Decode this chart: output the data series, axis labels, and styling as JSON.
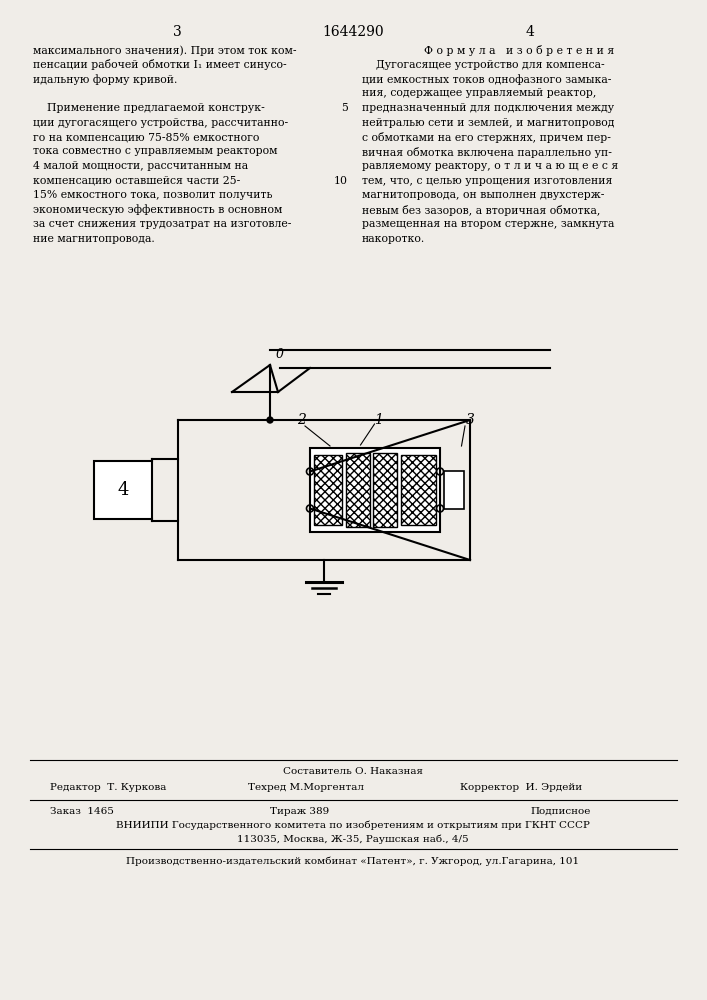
{
  "bg_color": "#f0ede8",
  "page_num_left": "3",
  "page_num_center": "1644290",
  "page_num_right": "4",
  "left_col_lines": [
    "максимального значения). При этом ток ком-",
    "пенсации рабочей обмотки I₁ имеет синусо-",
    "идальную форму кривой.",
    "",
    "    Применение предлагаемой конструк-",
    "ции дугогасящего устройства, рассчитанно-",
    "го на компенсацию 75-85% емкостного",
    "тока совместно с управляемым реактором",
    "4 малой мощности, рассчитанным на",
    "компенсацию оставшейся части 25-",
    "15% емкостного тока, позволит получить",
    "экономическую эффективность в основном",
    "за счет снижения трудозатрат на изготовле-",
    "ние магнитопровода."
  ],
  "line_num_5": "5",
  "line_num_10": "10",
  "right_col_header": "Ф о р м у л а   и з о б р е т е н и я",
  "right_col_lines": [
    "    Дугогасящее устройство для компенса-",
    "ции емкостных токов однофазного замыка-",
    "ния, содержащее управляемый реактор,",
    "предназначенный для подключения между",
    "нейтралью сети и землей, и магнитопровод",
    "с обмотками на его стержнях, причем пер-",
    "вичная обмотка включена параллельно уп-",
    "равляемому реактору, о т л и ч а ю щ е е с я",
    "тем, что, с целью упрощения изготовления",
    "магнитопровода, он выполнен двухстерж-",
    "невым без зазоров, а вторичная обмотка,",
    "размещенная на втором стержне, замкнута",
    "накоротко."
  ],
  "footer_sestavitel": "Составитель О. Наказная",
  "footer_redaktor": "Редактор  Т. Куркова",
  "footer_tehred": "Техред М.Моргентал",
  "footer_korrektor": "Корректор  И. Эрдейи",
  "footer_zakaz": "Заказ  1465",
  "footer_tirazh": "Тираж 389",
  "footer_podpisnoe": "Подписное",
  "footer_vniipii": "ВНИИПИ Государственного комитета по изобретениям и открытиям при ГКНТ СССР",
  "footer_address": "113035, Москва, Ж-35, Раушская наб., 4/5",
  "footer_patent": "Производственно-издательский комбинат «Патент», г. Ужгород, ул.Гагарина, 101"
}
